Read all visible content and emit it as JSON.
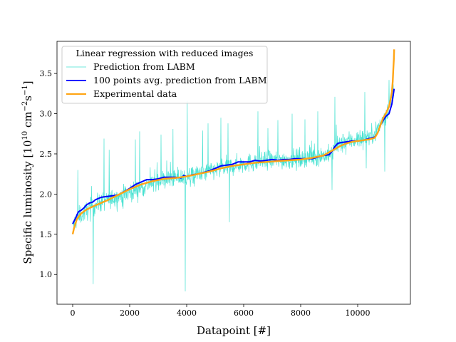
{
  "chart_data": {
    "type": "line",
    "title": "",
    "xlabel": "Datapoint [#]",
    "ylabel": "Specific luminosity [10",
    "ylabel_exp1": "10",
    "ylabel_mid": " cm",
    "ylabel_exp2": "−2",
    "ylabel_end": "s",
    "ylabel_exp3": "−1",
    "ylabel_close": "]",
    "xlim": [
      -550,
      11850
    ],
    "ylim": [
      0.63,
      3.9
    ],
    "xticks": [
      0,
      2000,
      4000,
      6000,
      8000,
      10000
    ],
    "yticks": [
      1.0,
      1.5,
      2.0,
      2.5,
      3.0,
      3.5
    ],
    "xtick_labels": [
      "0",
      "2000",
      "4000",
      "6000",
      "8000",
      "10000"
    ],
    "ytick_labels": [
      "1.0",
      "1.5",
      "2.0",
      "2.5",
      "3.0",
      "3.5"
    ],
    "legend": {
      "title": "Linear regression with reduced images",
      "placement": "top-left",
      "entries": [
        "Prediction from LABM",
        "100 points avg. prediction from LABM",
        "Experimental data"
      ]
    },
    "series": [
      {
        "name": "Experimental data",
        "color": "#ffa516",
        "x": [
          0,
          50,
          150,
          300,
          500,
          800,
          1200,
          1600,
          2000,
          2400,
          2800,
          3200,
          3600,
          4000,
          4400,
          4800,
          5200,
          5600,
          6000,
          6400,
          6800,
          7200,
          7600,
          8000,
          8400,
          8800,
          9000,
          9200,
          9400,
          9600,
          9800,
          10000,
          10200,
          10400,
          10600,
          10700,
          10800,
          10900,
          11000,
          11100,
          11150,
          11200,
          11230,
          11250,
          11270,
          11280
        ],
        "y": [
          1.5,
          1.58,
          1.69,
          1.76,
          1.81,
          1.86,
          1.92,
          1.99,
          2.06,
          2.12,
          2.16,
          2.19,
          2.2,
          2.22,
          2.25,
          2.28,
          2.32,
          2.35,
          2.37,
          2.39,
          2.4,
          2.41,
          2.42,
          2.43,
          2.45,
          2.48,
          2.52,
          2.56,
          2.6,
          2.63,
          2.65,
          2.66,
          2.67,
          2.68,
          2.7,
          2.76,
          2.86,
          2.95,
          3.01,
          3.09,
          3.17,
          3.27,
          3.4,
          3.55,
          3.68,
          3.8
        ]
      },
      {
        "name": "100 points avg. prediction from LABM",
        "color": "#0000ff",
        "x": [
          0,
          100,
          200,
          300,
          400,
          500,
          600,
          700,
          800,
          1000,
          1200,
          1400,
          1600,
          1800,
          2000,
          2200,
          2400,
          2600,
          2800,
          3000,
          3200,
          3400,
          3600,
          3800,
          3900,
          4000,
          4200,
          4400,
          4600,
          4800,
          5000,
          5200,
          5400,
          5600,
          5800,
          6000,
          6200,
          6400,
          6600,
          6800,
          7000,
          7200,
          7400,
          7600,
          7800,
          8000,
          8200,
          8400,
          8600,
          8800,
          9000,
          9100,
          9200,
          9300,
          9400,
          9600,
          9800,
          10000,
          10200,
          10400,
          10600,
          10700,
          10800,
          10900,
          11000,
          11100,
          11200,
          11280
        ],
        "y": [
          1.63,
          1.7,
          1.78,
          1.8,
          1.83,
          1.87,
          1.89,
          1.9,
          1.93,
          1.96,
          1.97,
          1.98,
          1.99,
          2.03,
          2.07,
          2.12,
          2.15,
          2.18,
          2.18,
          2.19,
          2.21,
          2.21,
          2.21,
          2.2,
          2.23,
          2.22,
          2.24,
          2.25,
          2.27,
          2.29,
          2.32,
          2.35,
          2.36,
          2.37,
          2.4,
          2.4,
          2.4,
          2.42,
          2.41,
          2.42,
          2.43,
          2.42,
          2.43,
          2.43,
          2.44,
          2.44,
          2.44,
          2.44,
          2.46,
          2.48,
          2.49,
          2.53,
          2.59,
          2.63,
          2.64,
          2.65,
          2.66,
          2.66,
          2.67,
          2.69,
          2.71,
          2.76,
          2.86,
          2.92,
          2.97,
          3.0,
          3.12,
          3.31
        ]
      }
    ],
    "noisy_series": {
      "name": "Prediction from LABM",
      "color": "#40e0d0",
      "x_range": [
        0,
        11280
      ],
      "noise_sd": 0.06,
      "trend_x": [
        0,
        200,
        600,
        1000,
        2000,
        3000,
        4000,
        5000,
        6000,
        7000,
        8000,
        9000,
        9300,
        9600,
        10000,
        10500,
        10800,
        11000,
        11150,
        11280
      ],
      "trend_y": [
        1.6,
        1.72,
        1.82,
        1.9,
        2.02,
        2.17,
        2.21,
        2.3,
        2.38,
        2.42,
        2.44,
        2.49,
        2.6,
        2.66,
        2.68,
        2.73,
        2.86,
        3.0,
        3.12,
        3.35
      ],
      "spikes": [
        {
          "x": 720,
          "y": 0.88
        },
        {
          "x": 660,
          "y": 2.1
        },
        {
          "x": 180,
          "y": 2.3
        },
        {
          "x": 1100,
          "y": 2.69
        },
        {
          "x": 1280,
          "y": 2.55
        },
        {
          "x": 2200,
          "y": 2.68
        },
        {
          "x": 2350,
          "y": 2.78
        },
        {
          "x": 3100,
          "y": 2.74
        },
        {
          "x": 3520,
          "y": 2.81
        },
        {
          "x": 3950,
          "y": 0.79
        },
        {
          "x": 4020,
          "y": 3.16
        },
        {
          "x": 4560,
          "y": 2.79
        },
        {
          "x": 4750,
          "y": 2.88
        },
        {
          "x": 5500,
          "y": 1.65
        },
        {
          "x": 5450,
          "y": 2.88
        },
        {
          "x": 5200,
          "y": 2.95
        },
        {
          "x": 6500,
          "y": 3.03
        },
        {
          "x": 6850,
          "y": 2.82
        },
        {
          "x": 7200,
          "y": 2.92
        },
        {
          "x": 7700,
          "y": 3.0
        },
        {
          "x": 8150,
          "y": 2.93
        },
        {
          "x": 8600,
          "y": 3.03
        },
        {
          "x": 9100,
          "y": 2.05
        },
        {
          "x": 9200,
          "y": 3.21
        },
        {
          "x": 10250,
          "y": 3.27
        },
        {
          "x": 10300,
          "y": 2.32
        },
        {
          "x": 10950,
          "y": 2.28
        },
        {
          "x": 11100,
          "y": 3.42
        }
      ]
    }
  }
}
